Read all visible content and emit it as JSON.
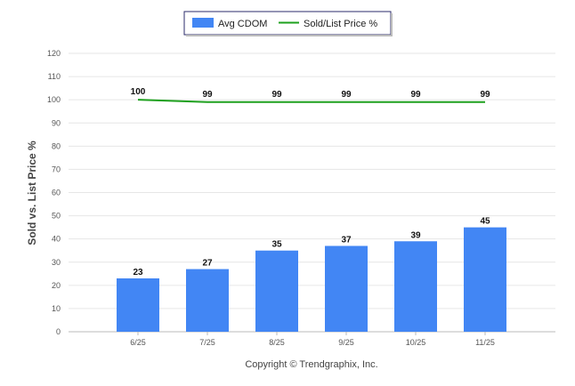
{
  "chart_data": {
    "type": "bar",
    "categories": [
      "6/25",
      "7/25",
      "8/25",
      "9/25",
      "10/25",
      "11/25"
    ],
    "series": [
      {
        "name": "Avg CDOM",
        "kind": "bar",
        "values": [
          23,
          27,
          35,
          37,
          39,
          45
        ],
        "color": "#4286f4"
      },
      {
        "name": "Sold/List Price %",
        "kind": "line",
        "values": [
          100,
          99,
          99,
          99,
          99,
          99
        ],
        "color": "#1ea01e"
      }
    ],
    "title": "",
    "xlabel": "",
    "ylabel": "Sold vs. List Price %",
    "ylim": [
      0,
      120
    ],
    "yticks": [
      0,
      10,
      20,
      30,
      40,
      50,
      60,
      70,
      80,
      90,
      100,
      110,
      120
    ],
    "grid": true,
    "legend": "top-center",
    "credit": "Copyright © Trendgraphix, Inc."
  }
}
